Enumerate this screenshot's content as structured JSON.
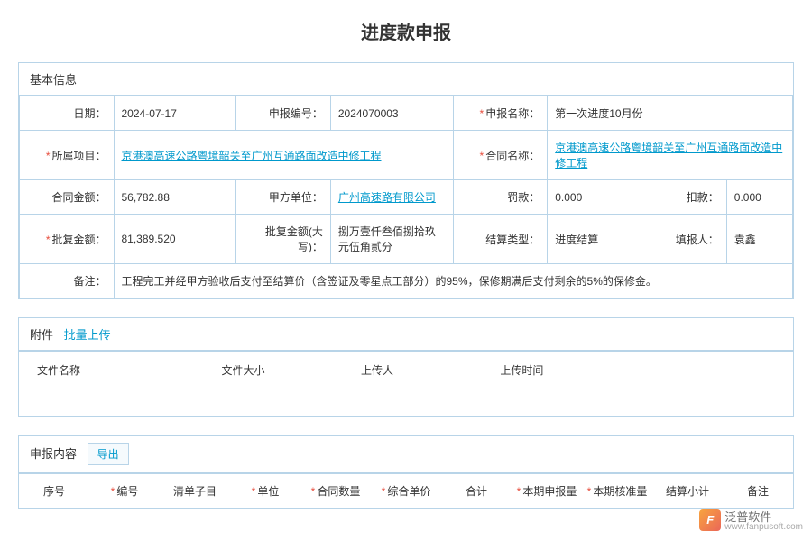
{
  "page_title": "进度款申报",
  "basic_info": {
    "section_title": "基本信息",
    "rows": {
      "date": {
        "label": "日期：",
        "value": "2024-07-17",
        "required": false
      },
      "declare_no": {
        "label": "申报编号：",
        "value": "2024070003",
        "required": false
      },
      "declare_name": {
        "label": "申报名称：",
        "value": "第一次进度10月份",
        "required": true
      },
      "project": {
        "label": "所属项目：",
        "value": "京港澳高速公路粤境韶关至广州互通路面改造中修工程",
        "required": true,
        "is_link": true
      },
      "contract_name": {
        "label": "合同名称：",
        "value": "京港澳高速公路粤境韶关至广州互通路面改造中修工程",
        "required": true,
        "is_link": true
      },
      "contract_amount": {
        "label": "合同金额：",
        "value": "56,782.88",
        "required": false
      },
      "party_a": {
        "label": "甲方单位：",
        "value": "广州高速路有限公司",
        "required": false,
        "is_link": true
      },
      "penalty": {
        "label": "罚款：",
        "value": "0.000",
        "required": false
      },
      "deduction": {
        "label": "扣款：",
        "value": "0.000",
        "required": false
      },
      "approved_amount": {
        "label": "批复金额：",
        "value": "81,389.520",
        "required": true
      },
      "approved_amount_cn": {
        "label": "批复金额(大写)：",
        "value": "捌万壹仟叁佰捌拾玖元伍角贰分",
        "required": false
      },
      "settlement_type": {
        "label": "结算类型：",
        "value": "进度结算",
        "required": false
      },
      "filler": {
        "label": "填报人：",
        "value": "袁鑫",
        "required": false
      },
      "remark": {
        "label": "备注：",
        "value": "工程完工并经甲方验收后支付至结算价（含签证及零星点工部分）的95%，保修期满后支付剩余的5%的保修金。",
        "required": false
      }
    }
  },
  "attachments": {
    "section_title": "附件",
    "batch_upload": "批量上传",
    "columns": [
      "文件名称",
      "文件大小",
      "上传人",
      "上传时间"
    ]
  },
  "declare_content": {
    "section_title": "申报内容",
    "export_btn": "导出",
    "columns": [
      {
        "label": "序号",
        "required": false
      },
      {
        "label": "编号",
        "required": true
      },
      {
        "label": "清单子目",
        "required": false
      },
      {
        "label": "单位",
        "required": true
      },
      {
        "label": "合同数量",
        "required": true
      },
      {
        "label": "综合单价",
        "required": true
      },
      {
        "label": "合计",
        "required": false
      },
      {
        "label": "本期申报量",
        "required": true
      },
      {
        "label": "本期核准量",
        "required": true
      },
      {
        "label": "结算小计",
        "required": false
      },
      {
        "label": "备注",
        "required": false
      }
    ]
  },
  "watermark": {
    "brand": "泛普软件",
    "url": "www.fanpusoft.com"
  }
}
